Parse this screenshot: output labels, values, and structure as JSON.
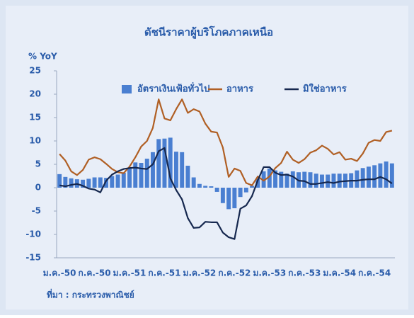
{
  "chart_data": {
    "type": "bar_line",
    "title": "ดัชนีราคาผู้บริโภคภาคเหนือ",
    "y_label": "% YoY",
    "source": "ที่มา : กระทรวงพาณิชย์",
    "legend": "top",
    "grid": false,
    "ylim": [
      -15,
      25
    ],
    "yticks": [
      -15,
      -10,
      -5,
      0,
      5,
      10,
      15,
      20,
      25
    ],
    "categories": [
      "ม.ค.-50",
      null,
      null,
      null,
      null,
      null,
      "ก.ค.-50",
      null,
      null,
      null,
      null,
      null,
      "ม.ค.-51",
      null,
      null,
      null,
      null,
      null,
      "ก.ค.-51",
      null,
      null,
      null,
      null,
      null,
      "ม.ค.-52",
      null,
      null,
      null,
      null,
      null,
      "ก.ค.-52",
      null,
      null,
      null,
      null,
      null,
      "ม.ค.-53",
      null,
      null,
      null,
      null,
      null,
      "ก.ค.-53",
      null,
      null,
      null,
      null,
      null,
      "ม.ค.-54",
      null,
      null,
      null,
      null,
      null,
      "ก.ค.-54",
      null,
      null,
      null
    ],
    "series": [
      {
        "name": "อัตราเงินเฟ้อทั่วไป",
        "type": "bar",
        "color": "#4a7fd1",
        "values": [
          2.9,
          2.3,
          2.0,
          1.8,
          1.7,
          1.9,
          2.2,
          2.2,
          2.1,
          2.5,
          2.8,
          3.2,
          4.3,
          5.4,
          5.3,
          6.2,
          7.6,
          10.4,
          10.5,
          10.7,
          7.7,
          7.6,
          4.7,
          2.2,
          0.8,
          0.4,
          0.3,
          -0.9,
          -3.3,
          -4.6,
          -4.4,
          -2.0,
          -1.0,
          0.4,
          1.9,
          3.5,
          4.1,
          3.7,
          3.4,
          3.0,
          3.5,
          3.3,
          3.4,
          3.3,
          3.0,
          2.8,
          2.8,
          3.0,
          3.0,
          3.0,
          3.1,
          3.7,
          4.2,
          4.5,
          4.8,
          5.2,
          5.6,
          5.2
        ]
      },
      {
        "name": "อาหาร",
        "type": "line",
        "color": "#b05f24",
        "values": [
          7.2,
          5.8,
          3.5,
          2.7,
          3.8,
          6.0,
          6.5,
          6.1,
          5.1,
          4.0,
          3.3,
          3.1,
          4.5,
          6.5,
          8.8,
          10.0,
          12.8,
          18.9,
          14.8,
          14.4,
          16.8,
          18.9,
          16.0,
          16.8,
          16.3,
          13.7,
          12.0,
          11.8,
          8.6,
          2.3,
          4.1,
          3.6,
          1.0,
          0.5,
          2.4,
          1.5,
          2.4,
          4.2,
          5.3,
          7.7,
          6.0,
          5.3,
          6.1,
          7.5,
          8.0,
          9.0,
          8.3,
          7.1,
          7.6,
          6.0,
          6.2,
          5.7,
          7.3,
          9.6,
          10.2,
          10.0,
          11.9,
          12.2
        ]
      },
      {
        "name": "มิใช่อาหาร",
        "type": "line",
        "color": "#16284f",
        "values": [
          0.5,
          0.3,
          0.6,
          0.8,
          0.4,
          -0.2,
          -0.4,
          -1.0,
          1.5,
          2.8,
          3.5,
          4.0,
          4.2,
          4.3,
          4.1,
          4.0,
          5.0,
          7.8,
          8.5,
          2.0,
          -0.5,
          -2.5,
          -6.5,
          -8.6,
          -8.5,
          -7.3,
          -7.4,
          -7.4,
          -9.6,
          -10.6,
          -11.0,
          -4.5,
          -3.8,
          -1.8,
          1.6,
          4.4,
          4.4,
          3.2,
          2.7,
          2.8,
          2.4,
          1.5,
          1.4,
          0.8,
          0.8,
          1.0,
          1.2,
          1.0,
          1.3,
          1.4,
          1.5,
          1.5,
          1.7,
          1.8,
          1.8,
          2.3,
          1.8,
          0.9
        ]
      }
    ]
  }
}
